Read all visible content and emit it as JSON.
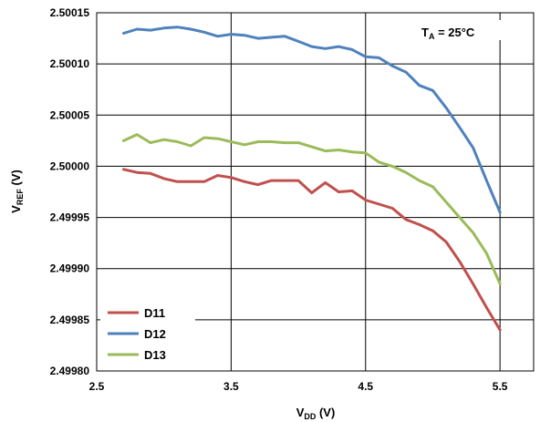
{
  "chart_data": {
    "type": "line",
    "title": "",
    "annotation": {
      "main": "T",
      "sub": "A",
      "rest": " = 25°C"
    },
    "xlabel": {
      "main": "V",
      "sub": "DD",
      "rest": " (V)"
    },
    "ylabel": {
      "main": "V",
      "sub": "REF",
      "rest": " (V)"
    },
    "xlim": [
      2.5,
      5.75
    ],
    "ylim": [
      2.4998,
      2.50015
    ],
    "x_ticks": [
      2.5,
      3.5,
      4.5,
      5.5
    ],
    "x_tick_labels": [
      "2.5",
      "3.5",
      "4.5",
      "5.5"
    ],
    "y_ticks": [
      2.4998,
      2.49985,
      2.4999,
      2.49995,
      2.5,
      2.50005,
      2.5001,
      2.50015
    ],
    "y_tick_labels": [
      "2.49980",
      "2.49985",
      "2.49990",
      "2.49995",
      "2.50000",
      "2.50005",
      "2.50010",
      "2.50015"
    ],
    "grid": "vertical lines at 2.5, 3.5, 4.5, 5.5; horizontal lines at every y tick",
    "legend_position": "bottom-left",
    "series": [
      {
        "name": "D11",
        "color": "#C0504D",
        "x": [
          2.7,
          2.8,
          2.9,
          3.0,
          3.1,
          3.2,
          3.3,
          3.4,
          3.5,
          3.6,
          3.7,
          3.8,
          3.9,
          4.0,
          4.1,
          4.2,
          4.3,
          4.4,
          4.5,
          4.6,
          4.7,
          4.8,
          4.9,
          5.0,
          5.1,
          5.2,
          5.3,
          5.4,
          5.5
        ],
        "values": [
          2.499997,
          2.499994,
          2.499993,
          2.499988,
          2.499985,
          2.499985,
          2.499985,
          2.499991,
          2.499989,
          2.499985,
          2.499982,
          2.499986,
          2.499986,
          2.499986,
          2.499974,
          2.499984,
          2.499975,
          2.499976,
          2.499967,
          2.499963,
          2.499959,
          2.499948,
          2.499943,
          2.499937,
          2.499926,
          2.499907,
          2.499885,
          2.499862,
          2.49984
        ]
      },
      {
        "name": "D12",
        "color": "#4F81BD",
        "x": [
          2.7,
          2.8,
          2.9,
          3.0,
          3.1,
          3.2,
          3.3,
          3.4,
          3.5,
          3.6,
          3.7,
          3.8,
          3.9,
          4.0,
          4.1,
          4.2,
          4.3,
          4.4,
          4.5,
          4.6,
          4.7,
          4.8,
          4.9,
          5.0,
          5.1,
          5.2,
          5.3,
          5.4,
          5.5
        ],
        "values": [
          2.50013,
          2.500134,
          2.500133,
          2.500135,
          2.500136,
          2.500134,
          2.500131,
          2.500127,
          2.500129,
          2.500128,
          2.500125,
          2.500126,
          2.500127,
          2.500122,
          2.500117,
          2.500115,
          2.500117,
          2.500114,
          2.500107,
          2.500106,
          2.500098,
          2.500092,
          2.500079,
          2.500074,
          2.500057,
          2.500038,
          2.500018,
          2.499986,
          2.499955
        ]
      },
      {
        "name": "D13",
        "color": "#9BBB59",
        "x": [
          2.7,
          2.8,
          2.9,
          3.0,
          3.1,
          3.2,
          3.3,
          3.4,
          3.5,
          3.6,
          3.7,
          3.8,
          3.9,
          4.0,
          4.1,
          4.2,
          4.3,
          4.4,
          4.5,
          4.6,
          4.7,
          4.8,
          4.9,
          5.0,
          5.1,
          5.2,
          5.3,
          5.4,
          5.5
        ],
        "values": [
          2.500025,
          2.500031,
          2.500023,
          2.500026,
          2.500024,
          2.50002,
          2.500028,
          2.500027,
          2.500024,
          2.500021,
          2.500024,
          2.500024,
          2.500023,
          2.500023,
          2.500019,
          2.500015,
          2.500016,
          2.500014,
          2.500013,
          2.500004,
          2.5,
          2.499994,
          2.499986,
          2.49998,
          2.499965,
          2.49995,
          2.499935,
          2.499915,
          2.499885
        ]
      }
    ]
  }
}
